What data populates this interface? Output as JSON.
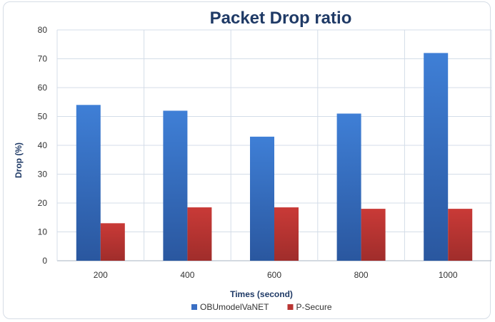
{
  "chart_data": {
    "type": "bar",
    "title": "Packet Drop ratio",
    "xlabel": "Times (second)",
    "ylabel": "Drop (%)",
    "categories": [
      "200",
      "400",
      "600",
      "800",
      "1000"
    ],
    "series": [
      {
        "name": "OBUmodelVaNET",
        "values": [
          54,
          52,
          43,
          51,
          72
        ],
        "color": "#3a6fc4"
      },
      {
        "name": "P-Secure",
        "values": [
          13,
          18.5,
          18.5,
          18,
          18
        ],
        "color": "#b93533"
      }
    ],
    "ylim": [
      0,
      80
    ],
    "yticks": [
      0,
      10,
      20,
      30,
      40,
      50,
      60,
      70,
      80
    ],
    "grid": true,
    "legend_position": "bottom"
  }
}
